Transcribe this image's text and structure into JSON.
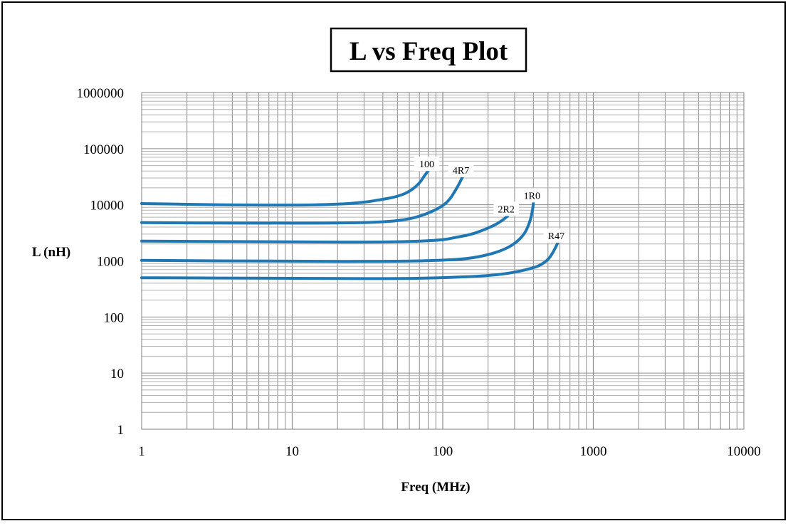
{
  "chart_data": {
    "type": "line",
    "title": "L vs Freq Plot",
    "xlabel": "Freq (MHz)",
    "ylabel": "L (nH)",
    "x_scale": "log",
    "y_scale": "log",
    "xlim": [
      1,
      10000
    ],
    "ylim": [
      1,
      1000000
    ],
    "x_ticks": [
      "1",
      "10",
      "100",
      "1000",
      "10000"
    ],
    "y_ticks": [
      "1",
      "10",
      "100",
      "1000",
      "10000",
      "100000",
      "1000000"
    ],
    "grid": true,
    "legend": "none",
    "line_color": "#1f77b4",
    "series": [
      {
        "name": "100",
        "points": [
          [
            1,
            10500
          ],
          [
            3,
            10000
          ],
          [
            10,
            9800
          ],
          [
            20,
            10200
          ],
          [
            30,
            11000
          ],
          [
            40,
            12500
          ],
          [
            50,
            14000
          ],
          [
            60,
            17000
          ],
          [
            70,
            24000
          ],
          [
            75,
            32000
          ],
          [
            80,
            40000
          ]
        ]
      },
      {
        "name": "4R7",
        "points": [
          [
            1,
            4800
          ],
          [
            5,
            4700
          ],
          [
            20,
            4700
          ],
          [
            40,
            4900
          ],
          [
            60,
            5500
          ],
          [
            80,
            7000
          ],
          [
            100,
            9500
          ],
          [
            110,
            12000
          ],
          [
            120,
            17000
          ],
          [
            130,
            25000
          ],
          [
            135,
            31000
          ]
        ]
      },
      {
        "name": "2R2",
        "points": [
          [
            1,
            2250
          ],
          [
            5,
            2200
          ],
          [
            30,
            2150
          ],
          [
            60,
            2200
          ],
          [
            100,
            2350
          ],
          [
            120,
            2600
          ],
          [
            150,
            2900
          ],
          [
            180,
            3400
          ],
          [
            220,
            4300
          ],
          [
            250,
            5300
          ],
          [
            270,
            6300
          ]
        ]
      },
      {
        "name": "1R0",
        "points": [
          [
            1,
            1020
          ],
          [
            10,
            980
          ],
          [
            50,
            980
          ],
          [
            100,
            1020
          ],
          [
            150,
            1100
          ],
          [
            200,
            1280
          ],
          [
            250,
            1550
          ],
          [
            300,
            2000
          ],
          [
            350,
            3000
          ],
          [
            380,
            5000
          ],
          [
            395,
            8000
          ],
          [
            400,
            11000
          ]
        ]
      },
      {
        "name": "R47",
        "points": [
          [
            1,
            500
          ],
          [
            10,
            490
          ],
          [
            50,
            480
          ],
          [
            100,
            500
          ],
          [
            200,
            540
          ],
          [
            300,
            620
          ],
          [
            400,
            750
          ],
          [
            450,
            850
          ],
          [
            500,
            1050
          ],
          [
            530,
            1300
          ],
          [
            560,
            1700
          ],
          [
            580,
            2100
          ]
        ]
      }
    ]
  }
}
